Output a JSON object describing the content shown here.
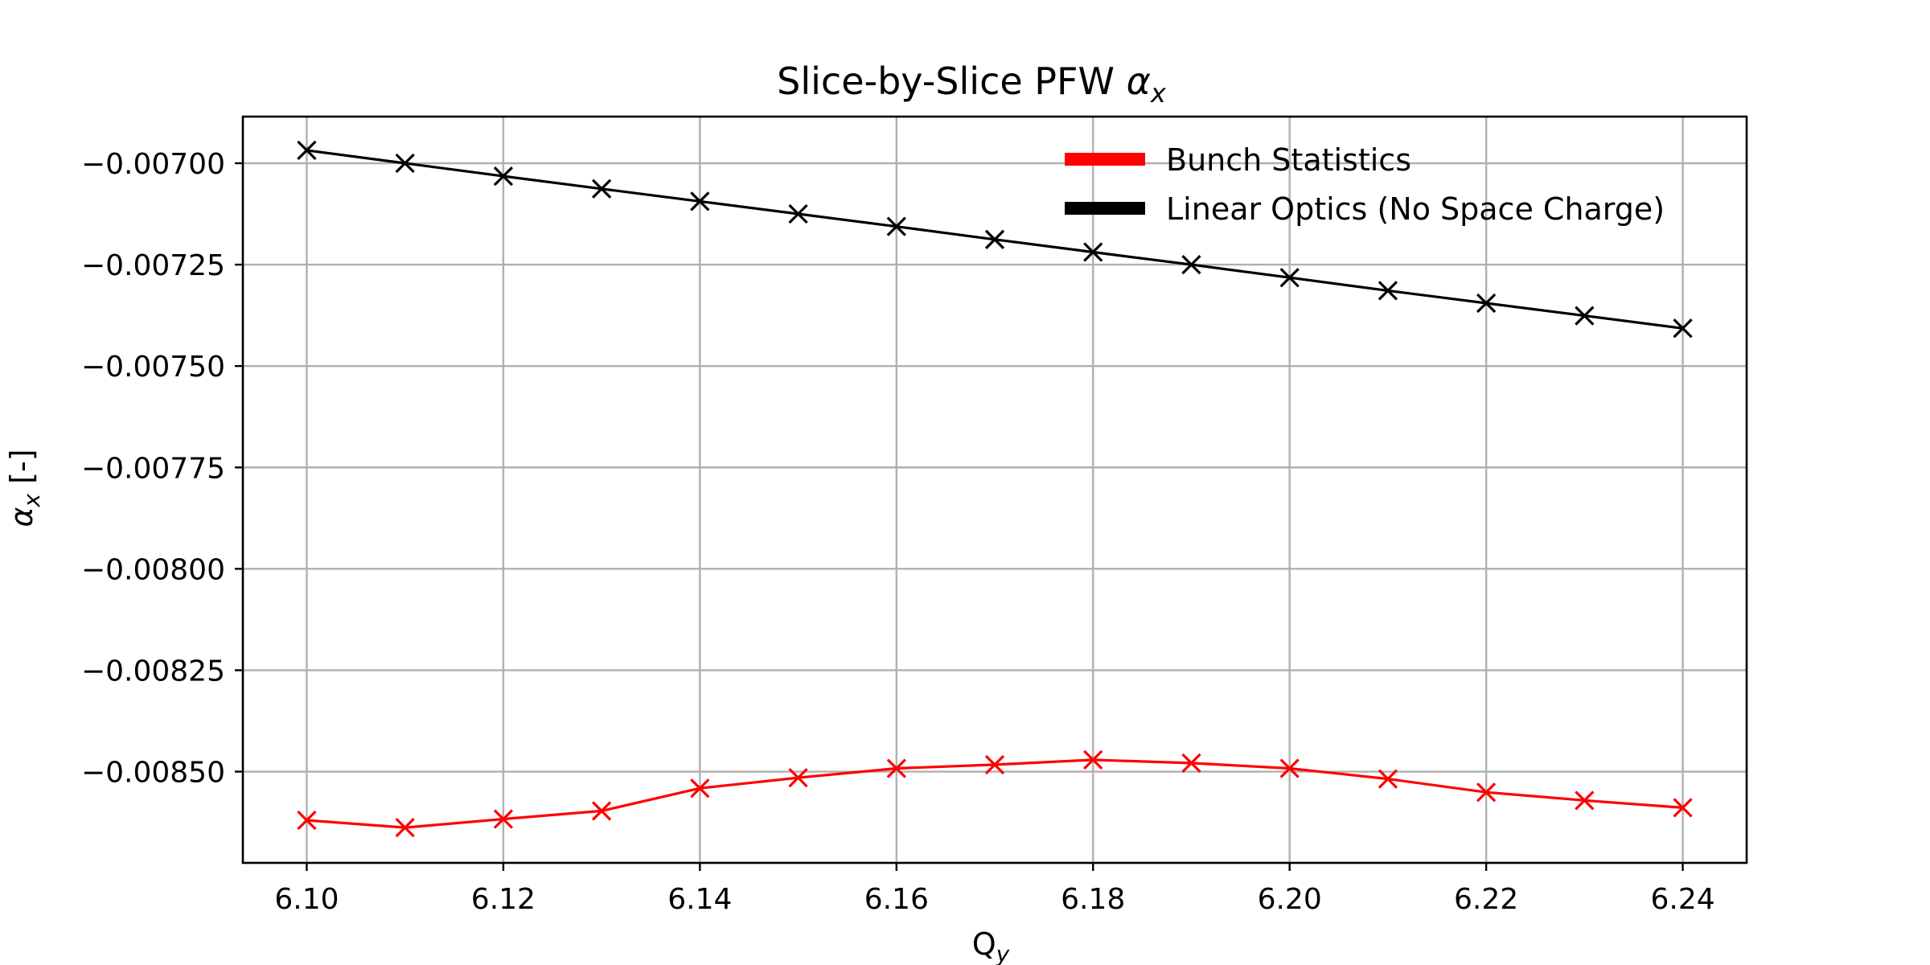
{
  "chart_data": {
    "type": "line",
    "title": "Slice-by-Slice PFW",
    "title_symbol": "α",
    "title_symbol_sub": "x",
    "xlabel": "Q",
    "xlabel_sub": "y",
    "ylabel_symbol": "α",
    "ylabel_sub": "x",
    "ylabel_suffix": " [-]",
    "xlim": [
      6.0935,
      6.2465
    ],
    "ylim": [
      -0.008725,
      -0.006885
    ],
    "x_ticks": [
      6.1,
      6.12,
      6.14,
      6.16,
      6.18,
      6.2,
      6.22,
      6.24
    ],
    "x_tick_labels": [
      "6.10",
      "6.12",
      "6.14",
      "6.16",
      "6.18",
      "6.20",
      "6.22",
      "6.24"
    ],
    "y_ticks": [
      -0.007,
      -0.00725,
      -0.0075,
      -0.00775,
      -0.008,
      -0.00825,
      -0.0085
    ],
    "y_tick_labels": [
      "−0.00700",
      "−0.00725",
      "−0.00750",
      "−0.00775",
      "−0.00800",
      "−0.00825",
      "−0.00850"
    ],
    "grid": true,
    "legend_position": "top-right",
    "x": [
      6.1,
      6.11,
      6.12,
      6.13,
      6.14,
      6.15,
      6.16,
      6.17,
      6.18,
      6.19,
      6.2,
      6.21,
      6.22,
      6.23,
      6.24
    ],
    "series": [
      {
        "name": "Bunch Statistics",
        "color": "#ff0000",
        "marker": "x",
        "values": [
          -0.00862,
          -0.008638,
          -0.008617,
          -0.008597,
          -0.008541,
          -0.008515,
          -0.008492,
          -0.008483,
          -0.008471,
          -0.008479,
          -0.008492,
          -0.008518,
          -0.008551,
          -0.008571,
          -0.008589
        ]
      },
      {
        "name": "Linear Optics (No Space Charge)",
        "color": "#000000",
        "marker": "x",
        "values": [
          -0.006968,
          -0.007,
          -0.007032,
          -0.007063,
          -0.007094,
          -0.007125,
          -0.007156,
          -0.007188,
          -0.007219,
          -0.00725,
          -0.007282,
          -0.007314,
          -0.007345,
          -0.007376,
          -0.007407
        ]
      }
    ]
  }
}
